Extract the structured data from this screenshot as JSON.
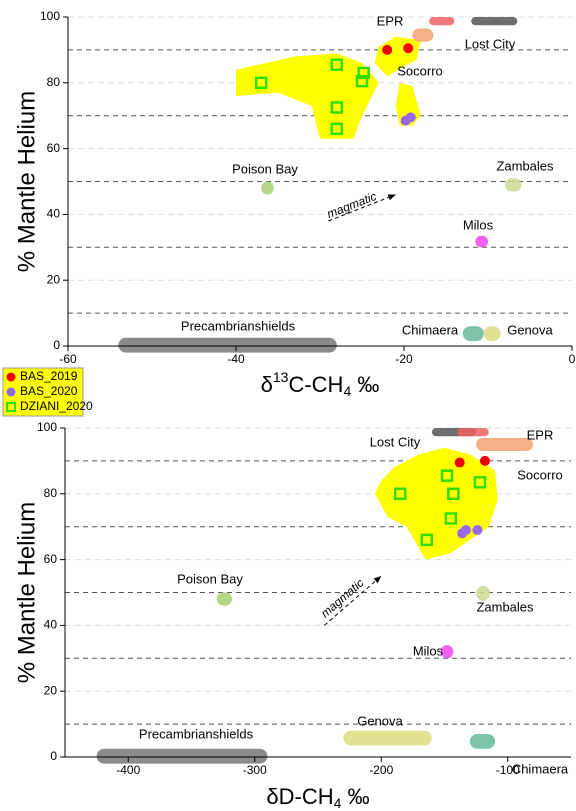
{
  "chart_data": [
    {
      "type": "scatter",
      "xlabel": {
        "prefix": "δ",
        "sup": "13",
        "main": "C-CH",
        "sub": "4",
        "unit": " ‰"
      },
      "ylabel": "% Mantle Helium",
      "xlim": [
        -60,
        0
      ],
      "xticks": [
        -60,
        -40,
        -20,
        0
      ],
      "ylim": [
        0,
        100
      ],
      "yticks": [
        0,
        20,
        40,
        60,
        80,
        100
      ],
      "grid": true,
      "reference_lines": [
        10,
        30,
        50,
        70,
        90
      ],
      "legend": "below",
      "regions": [
        {
          "color": "#ffff00",
          "points": [
            [
              -40,
              84
            ],
            [
              -33,
              88
            ],
            [
              -28,
              89
            ],
            [
              -25,
              86
            ],
            [
              -23,
              80
            ],
            [
              -25,
              70
            ],
            [
              -26,
              63
            ],
            [
              -30,
              63
            ],
            [
              -31,
              73
            ],
            [
              -35,
              77
            ],
            [
              -40,
              76
            ]
          ]
        },
        {
          "name": "Socorro",
          "color": "#ffff00",
          "points": [
            [
              -23,
              91
            ],
            [
              -21,
              94
            ],
            [
              -18,
              93
            ],
            [
              -18.5,
              87
            ],
            [
              -20,
              85
            ],
            [
              -22,
              82
            ],
            [
              -23.5,
              86
            ]
          ]
        },
        {
          "color": "#ffff00",
          "points": [
            [
              -20.5,
              80
            ],
            [
              -19,
              79
            ],
            [
              -18,
              70
            ],
            [
              -19,
              67
            ],
            [
              -20.5,
              67
            ],
            [
              -21,
              73
            ]
          ]
        }
      ],
      "fields": [
        {
          "color": "#f06060",
          "x": [
            -17,
            -14
          ],
          "y": [
            97.5,
            100
          ]
        },
        {
          "name": "EPR",
          "color": "#f4a070",
          "x": [
            -19,
            -16.5
          ],
          "y": [
            92.5,
            96.5
          ]
        },
        {
          "name": "Lost City",
          "color": "#555555",
          "x": [
            -12,
            -6.5
          ],
          "y": [
            97.5,
            100
          ]
        },
        {
          "name": "Poison Bay",
          "color": "#a8d070",
          "x": [
            -37,
            -35.5
          ],
          "y": [
            46,
            50
          ]
        },
        {
          "name": "Zambales",
          "color": "#c8dc90",
          "x": [
            -8,
            -6
          ],
          "y": [
            47,
            51
          ]
        },
        {
          "name": "Milos",
          "color": "#ee44ee",
          "x": [
            -11.5,
            -10
          ],
          "y": [
            30,
            33.5
          ]
        },
        {
          "name": "Chimaera",
          "color": "#66b899",
          "x": [
            -13,
            -10.5
          ],
          "y": [
            1.5,
            6
          ]
        },
        {
          "name": "Genova",
          "color": "#dcdc80",
          "x": [
            -10.5,
            -8.5
          ],
          "y": [
            1.5,
            6
          ]
        },
        {
          "name": "Precambrianshields",
          "color": "#777777",
          "x": [
            -54,
            -28
          ],
          "y": [
            -2,
            2.5
          ]
        }
      ],
      "annotations": [
        {
          "text": "magmatic",
          "x": [
            -29,
            -21
          ],
          "y": [
            38,
            46
          ]
        }
      ],
      "series": [
        {
          "name": "BAS_2019",
          "color": "#ee0000",
          "marker": "circle",
          "x": [
            -22,
            -19.5
          ],
          "values": [
            90,
            90.5
          ]
        },
        {
          "name": "BAS_2020",
          "color": "#9966ee",
          "marker": "circle",
          "x": [
            -19.8,
            -19.2
          ],
          "values": [
            68.5,
            69.5
          ]
        },
        {
          "name": "DZIANI_2020",
          "color": "#33dd00",
          "marker": "square",
          "x": [
            -37,
            -28,
            -24.8,
            -25,
            -28,
            -28
          ],
          "values": [
            80,
            85.5,
            83,
            80.5,
            72.5,
            66
          ]
        }
      ]
    },
    {
      "type": "scatter",
      "xlabel": {
        "main": "δD-CH",
        "sub": "4",
        "unit": " ‰"
      },
      "ylabel": "% Mantle Helium",
      "xlim": [
        -450,
        -50
      ],
      "xticks": [
        -400,
        -300,
        -200,
        -100
      ],
      "ylim": [
        0,
        100
      ],
      "yticks": [
        0,
        20,
        40,
        60,
        80,
        100
      ],
      "grid": true,
      "reference_lines": [
        10,
        30,
        50,
        70,
        90
      ],
      "regions": [
        {
          "name": "Socorro",
          "color": "#ffff00",
          "points": [
            [
              -200,
              84
            ],
            [
              -190,
              88
            ],
            [
              -170,
              92
            ],
            [
              -150,
              94
            ],
            [
              -130,
              92
            ],
            [
              -110,
              87
            ],
            [
              -108,
              78
            ],
            [
              -115,
              70
            ],
            [
              -130,
              66
            ],
            [
              -145,
              62
            ],
            [
              -165,
              60
            ],
            [
              -180,
              70
            ],
            [
              -195,
              73
            ],
            [
              -205,
              80
            ]
          ]
        }
      ],
      "fields": [
        {
          "name": "Lost City",
          "color": "#555555",
          "x": [
            -160,
            -125
          ],
          "y": [
            97.5,
            100
          ]
        },
        {
          "color": "#f06060",
          "x": [
            -140,
            -115
          ],
          "y": [
            97.5,
            100
          ]
        },
        {
          "name": "EPR",
          "color": "#f4a070",
          "x": [
            -125,
            -80
          ],
          "y": [
            93,
            97
          ]
        },
        {
          "name": "Poison Bay",
          "color": "#a8d070",
          "x": [
            -330,
            -318
          ],
          "y": [
            46,
            50
          ]
        },
        {
          "name": "Zambales",
          "color": "#c8dc90",
          "x": [
            -125,
            -114
          ],
          "y": [
            47.5,
            52
          ]
        },
        {
          "name": "Milos",
          "color": "#ee44ee",
          "x": [
            -153,
            -143
          ],
          "y": [
            30,
            34
          ]
        },
        {
          "name": "Genova",
          "color": "#dcdc80",
          "x": [
            -230,
            -160
          ],
          "y": [
            3.5,
            8
          ]
        },
        {
          "name": "Chimaera",
          "color": "#66b899",
          "x": [
            -130,
            -110
          ],
          "y": [
            2.5,
            7
          ]
        },
        {
          "name": "Precambrianshields",
          "color": "#777777",
          "x": [
            -425,
            -290
          ],
          "y": [
            -2,
            2.5
          ]
        }
      ],
      "annotations": [
        {
          "text": "magmatic",
          "x": [
            -245,
            -200
          ],
          "y": [
            40,
            55
          ]
        }
      ],
      "series": [
        {
          "name": "BAS_2019",
          "color": "#ee0000",
          "marker": "circle",
          "x": [
            -138,
            -118
          ],
          "values": [
            89.5,
            90
          ]
        },
        {
          "name": "BAS_2020",
          "color": "#9966ee",
          "marker": "circle",
          "x": [
            -136,
            -133,
            -124
          ],
          "values": [
            68,
            69,
            69
          ]
        },
        {
          "name": "DZIANI_2020",
          "color": "#33dd00",
          "marker": "square",
          "x": [
            -185,
            -148,
            -143,
            -122,
            -145,
            -164
          ],
          "values": [
            80,
            85.5,
            80,
            83.5,
            72.5,
            66
          ]
        }
      ]
    }
  ]
}
